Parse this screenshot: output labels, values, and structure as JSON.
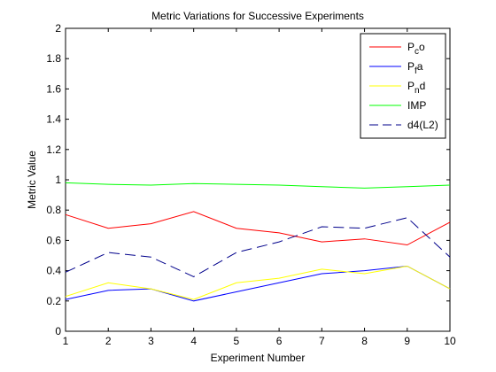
{
  "chart_data": {
    "type": "line",
    "title": "Metric Variations for Successive Experiments",
    "xlabel": "Experiment Number",
    "ylabel": "Metric Value",
    "xlim": [
      1,
      10
    ],
    "ylim": [
      0,
      2
    ],
    "x_ticks": [
      "1",
      "2",
      "3",
      "4",
      "5",
      "6",
      "7",
      "8",
      "9",
      "10"
    ],
    "y_ticks": [
      "0",
      "0.2",
      "0.4",
      "0.6",
      "0.8",
      "1",
      "1.2",
      "1.4",
      "1.6",
      "1.8",
      "2"
    ],
    "grid": false,
    "legend_position": "top-right",
    "x": [
      1,
      2,
      3,
      4,
      5,
      6,
      7,
      8,
      9,
      10
    ],
    "series": [
      {
        "name": "Pco",
        "label_main1": "P",
        "label_sub": "c",
        "label_main2": "o",
        "color": "#ff0000",
        "dash": "solid",
        "values": [
          0.77,
          0.68,
          0.71,
          0.79,
          0.68,
          0.65,
          0.59,
          0.61,
          0.57,
          0.72
        ]
      },
      {
        "name": "Pfa",
        "label_main1": "P",
        "label_sub": "f",
        "label_main2": "a",
        "color": "#0000ff",
        "dash": "solid",
        "values": [
          0.21,
          0.27,
          0.28,
          0.2,
          0.26,
          0.32,
          0.38,
          0.4,
          0.43,
          0.28
        ]
      },
      {
        "name": "Pnd",
        "label_main1": "P",
        "label_sub": "n",
        "label_main2": "d",
        "color": "#ffff00",
        "dash": "solid",
        "values": [
          0.23,
          0.32,
          0.28,
          0.21,
          0.32,
          0.35,
          0.41,
          0.38,
          0.43,
          0.28
        ]
      },
      {
        "name": "IMP",
        "label_main1": "IMP",
        "label_sub": "",
        "label_main2": "",
        "color": "#00ff00",
        "dash": "solid",
        "values": [
          0.98,
          0.97,
          0.965,
          0.975,
          0.97,
          0.965,
          0.955,
          0.945,
          0.955,
          0.965
        ]
      },
      {
        "name": "d4(L2)",
        "label_main1": "d4(L2)",
        "label_sub": "",
        "label_main2": "",
        "color": "#00008b",
        "dash": "dashed",
        "values": [
          0.39,
          0.52,
          0.49,
          0.36,
          0.52,
          0.59,
          0.69,
          0.68,
          0.75,
          0.49
        ]
      }
    ]
  }
}
